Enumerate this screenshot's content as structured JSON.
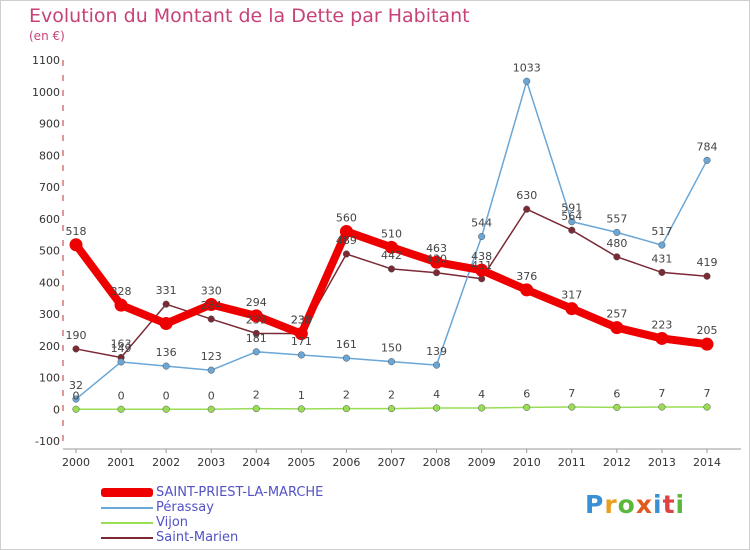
{
  "title": "Evolution du Montant de la Dette par Habitant",
  "subtitle": "(en €)",
  "logo_text": "Proxiti",
  "colors": {
    "axis": "#a06060",
    "grid_dash": "#c03030",
    "tick_text": "#333333",
    "title": "#c8427a",
    "legend_text": "#5252c8"
  },
  "chart_data": {
    "type": "line",
    "title": "Evolution du Montant de la Dette par Habitant",
    "subtitle": "(en €)",
    "x": [
      "2000",
      "2001",
      "2002",
      "2003",
      "2004",
      "2005",
      "2006",
      "2007",
      "2008",
      "2009",
      "2010",
      "2011",
      "2012",
      "2013",
      "2014"
    ],
    "ylim": [
      -100,
      1100
    ],
    "yticks": [
      "-100",
      "0",
      "100",
      "200",
      "300",
      "400",
      "500",
      "600",
      "700",
      "800",
      "900",
      "1000",
      "1100"
    ],
    "grid": false,
    "legend_position": "bottom-left",
    "series": [
      {
        "name": "SAINT-PRIEST-LA-MARCHE",
        "color": "#ee0000",
        "values": [
          518,
          328,
          270,
          330,
          294,
          238,
          560,
          510,
          463,
          438,
          376,
          317,
          257,
          223,
          205
        ],
        "labels": [
          "518",
          "328",
          "",
          "330",
          "294",
          "238",
          "560",
          "510",
          "463",
          "438",
          "376",
          "317",
          "257",
          "223",
          "205"
        ]
      },
      {
        "name": "Pérassay",
        "color": "#6aa6d6",
        "values": [
          32,
          149,
          136,
          123,
          181,
          171,
          161,
          150,
          139,
          544,
          1033,
          591,
          557,
          517,
          784
        ],
        "labels": [
          "32",
          "149",
          "136",
          "123",
          "181",
          "171",
          "161",
          "150",
          "139",
          "544",
          "1033",
          "591",
          "557",
          "517",
          "784"
        ]
      },
      {
        "name": "Vijon",
        "color": "#99dd55",
        "values": [
          0,
          0,
          0,
          0,
          2,
          1,
          2,
          2,
          4,
          4,
          6,
          7,
          6,
          7,
          7
        ],
        "labels": [
          "0",
          "0",
          "0",
          "0",
          "2",
          "1",
          "2",
          "2",
          "4",
          "4",
          "6",
          "7",
          "6",
          "7",
          "7"
        ]
      },
      {
        "name": "Saint-Marien",
        "color": "#7a2a35",
        "values": [
          190,
          163,
          331,
          284,
          239,
          238,
          489,
          442,
          430,
          411,
          630,
          564,
          480,
          431,
          419
        ],
        "labels": [
          "190",
          "163",
          "331",
          "284",
          "239",
          "238",
          "489",
          "442",
          "430",
          "411",
          "630",
          "564",
          "480",
          "431",
          "419"
        ]
      }
    ]
  }
}
